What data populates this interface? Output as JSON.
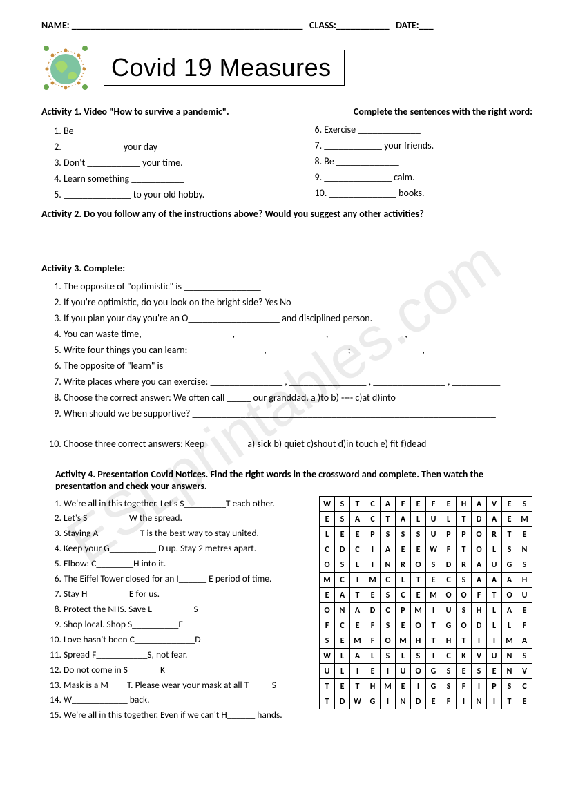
{
  "watermark": "ESLprintables.com",
  "header": {
    "name_label": "NAME: ________________________________________________",
    "class_label": "CLASS:___________",
    "date_label": "DATE:___"
  },
  "title": "Covid 19    Measures",
  "globe_colors": {
    "water": "#7ec4a1",
    "land": "#a5d96e",
    "ring": "#c78b3a",
    "virus": "#6aa84f"
  },
  "activity1": {
    "head_left": "Activity 1.  Video \"How to survive a pandemic\".",
    "head_right": "Complete the sentences with the right word:",
    "left": [
      "Be _____________",
      "____________ your day",
      "Don't ___________ your time.",
      "Learn something ___________",
      "______________  to your old hobby."
    ],
    "right": [
      "6. Exercise _____________",
      "7. ____________ your friends.",
      "8. Be _____________",
      " 9. ______________ calm.",
      "10. ______________ books."
    ]
  },
  "activity2": {
    "head": "Activity 2.  Do you follow any of the instructions above? Would you suggest any other activities?"
  },
  "activity3": {
    "head": "Activity 3. Complete:",
    "items": [
      "The opposite of \"optimistic\" is ________________",
      "If you're optimistic, do you look on the bright side?    Yes     No",
      "If you plan your day you're an O___________________  and disciplined person.",
      "You can waste time, __________________ , __________________ , _______________ , __________________",
      "Write four things you can learn: _______________ , ________________ ; ______________ , _______________",
      "The opposite of \"learn\" is ________________",
      "Write  places where you can exercise: _______________ , ________________ , _______________ , __________",
      "Choose the correct answer:   We often call _____ our granddad.       a )to      b) ----     c)at     d)into",
      "When should we be supportive? _______________________________________________________________\n_______________________________________________________________________________________",
      "Choose three correct answers:   Keep ________     a) sick   b) quiet    c)shout   d)in touch    e) fit   f)dead"
    ]
  },
  "activity4": {
    "head": "Activity 4.  Presentation Covid Notices. Find the right words in the crossword and complete. Then watch the presentation and check your answers.",
    "items": [
      "We're all in this together. Let's S_________T each other.",
      "Let's S_________W   the spread.",
      "Staying A_________T is the best way to stay united.",
      "Keep your G__________ D   up. Stay 2 metres apart.",
      "Elbow:  C________H  into it.",
      "The Eiffel Tower closed for an I______ E   period of time.",
      "Stay  H_________E  for us.",
      "Protect the NHS. Save  L_________S",
      "Shop local. Shop  S__________E",
      "Love hasn't been C_____________D",
      "Spread F___________S, not fear.",
      "Do not come in S_______K",
      "Mask is a  M____T.  Please wear your mask at all T_____S",
      "W____________    back.",
      "We're all in this together. Even if we can't H______ hands."
    ]
  },
  "wordsearch": {
    "grid": [
      [
        "W",
        "S",
        "T",
        "C",
        "A",
        "F",
        "E",
        "F",
        "E",
        "H",
        "A",
        "V",
        "E",
        "S"
      ],
      [
        "E",
        "S",
        "A",
        "C",
        "T",
        "A",
        "L",
        "U",
        "L",
        "T",
        "D",
        "A",
        "E",
        "M"
      ],
      [
        "L",
        "E",
        "E",
        "P",
        "S",
        "S",
        "S",
        "U",
        "P",
        "P",
        "O",
        "R",
        "T",
        "E"
      ],
      [
        "C",
        "D",
        "C",
        "I",
        "A",
        "E",
        "E",
        "W",
        "F",
        "T",
        "O",
        "L",
        "S",
        "N"
      ],
      [
        "O",
        "S",
        "L",
        "I",
        "N",
        "R",
        "O",
        "S",
        "D",
        "R",
        "A",
        "U",
        "G",
        "S"
      ],
      [
        "M",
        "C",
        "I",
        "M",
        "C",
        "L",
        "T",
        "E",
        "C",
        "S",
        "A",
        "A",
        "A",
        "H"
      ],
      [
        "E",
        "A",
        "T",
        "E",
        "S",
        "C",
        "E",
        "M",
        "O",
        "O",
        "F",
        "T",
        "O",
        "U"
      ],
      [
        "O",
        "N",
        "A",
        "D",
        "C",
        "P",
        "M",
        "I",
        "U",
        "S",
        "H",
        "L",
        "A",
        "E"
      ],
      [
        "F",
        "C",
        "E",
        "F",
        "S",
        "E",
        "O",
        "T",
        "G",
        "O",
        "D",
        "L",
        "L",
        "F"
      ],
      [
        "S",
        "E",
        "M",
        "F",
        "O",
        "M",
        "H",
        "T",
        "H",
        "T",
        "I",
        "I",
        "M",
        "A"
      ],
      [
        "W",
        "L",
        "A",
        "L",
        "S",
        "L",
        "S",
        "I",
        "C",
        "K",
        "V",
        "U",
        "N",
        "S"
      ],
      [
        "U",
        "L",
        "I",
        "E",
        "I",
        "U",
        "O",
        "G",
        "S",
        "E",
        "S",
        "E",
        "N",
        "V"
      ],
      [
        "T",
        "E",
        "T",
        "H",
        "M",
        "E",
        "I",
        "G",
        "S",
        "F",
        "I",
        "P",
        "S",
        "C"
      ],
      [
        "T",
        "D",
        "W",
        "G",
        "I",
        "N",
        "D",
        "E",
        "F",
        "I",
        "N",
        "I",
        "T",
        "E"
      ]
    ],
    "border_color": "#000000",
    "cell_size": 22,
    "font_size": 12,
    "font_weight": "bold"
  }
}
